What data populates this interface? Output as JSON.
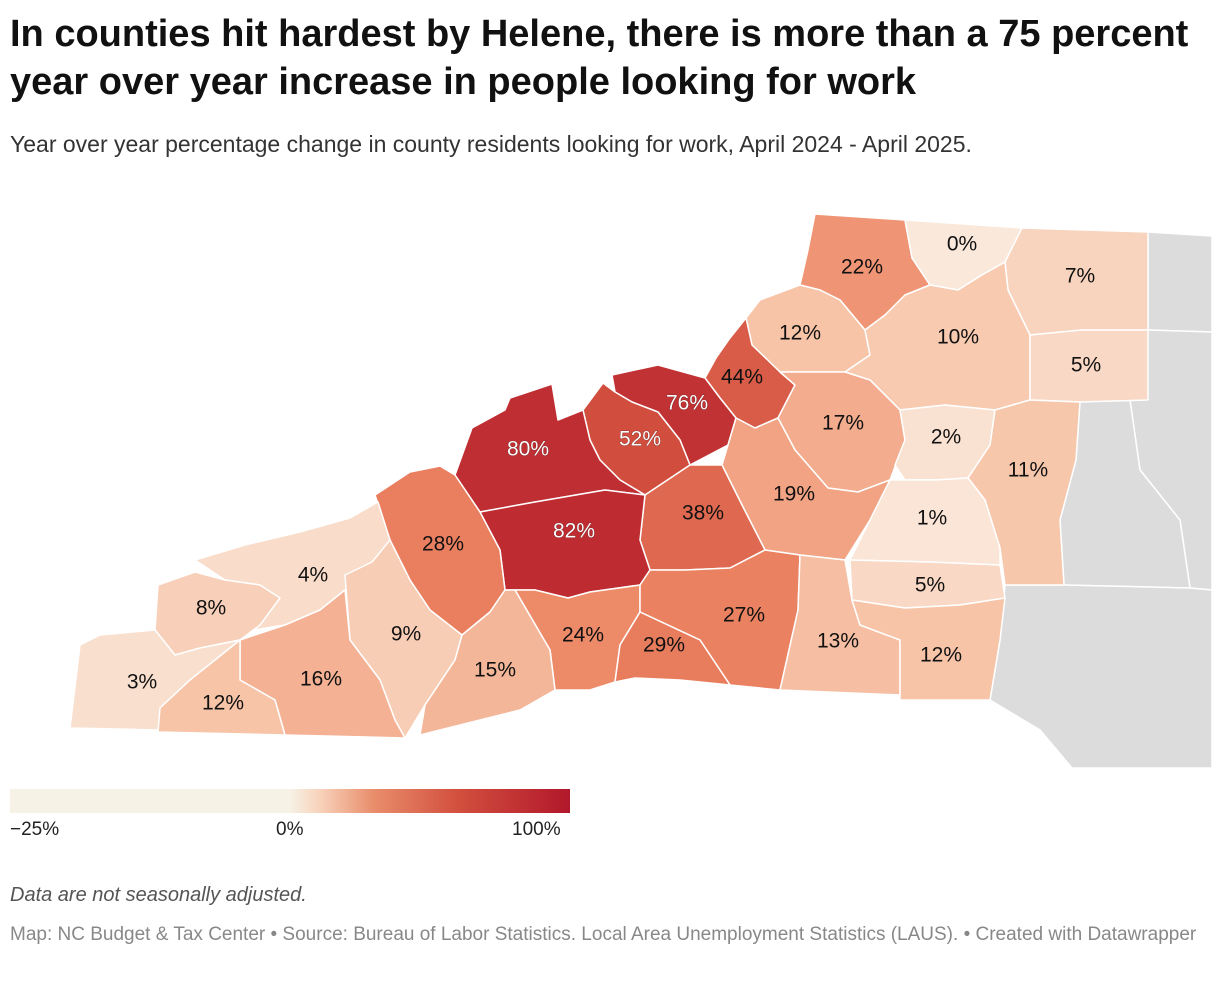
{
  "title": "In counties hit hardest by Helene, there is more than a 75 percent year over year increase in people looking for work",
  "subtitle": "Year over year percentage change in county residents looking for work, April 2024 - April 2025.",
  "legend": {
    "min_label": "−25%",
    "mid_label": "0%",
    "max_label": "100%",
    "colors": [
      "#f6f2e6",
      "#f8d4bd",
      "#e98d6b",
      "#d24f3e",
      "#b2182b"
    ]
  },
  "counties": [
    {
      "label": "22%",
      "value": 22
    },
    {
      "label": "0%",
      "value": 0
    },
    {
      "label": "7%",
      "value": 7
    },
    {
      "label": "12%",
      "value": 12
    },
    {
      "label": "10%",
      "value": 10
    },
    {
      "label": "5%",
      "value": 5
    },
    {
      "label": "44%",
      "value": 44
    },
    {
      "label": "76%",
      "value": 76
    },
    {
      "label": "52%",
      "value": 52
    },
    {
      "label": "80%",
      "value": 80
    },
    {
      "label": "17%",
      "value": 17
    },
    {
      "label": "2%",
      "value": 2
    },
    {
      "label": "11%",
      "value": 11
    },
    {
      "label": "19%",
      "value": 19
    },
    {
      "label": "38%",
      "value": 38
    },
    {
      "label": "82%",
      "value": 82
    },
    {
      "label": "28%",
      "value": 28
    },
    {
      "label": "1%",
      "value": 1
    },
    {
      "label": "4%",
      "value": 4
    },
    {
      "label": "5%",
      "value": 5
    },
    {
      "label": "8%",
      "value": 8
    },
    {
      "label": "9%",
      "value": 9
    },
    {
      "label": "24%",
      "value": 24
    },
    {
      "label": "27%",
      "value": 27
    },
    {
      "label": "29%",
      "value": 29
    },
    {
      "label": "13%",
      "value": 13
    },
    {
      "label": "12%",
      "value": 12
    },
    {
      "label": "3%",
      "value": 3
    },
    {
      "label": "16%",
      "value": 16
    },
    {
      "label": "15%",
      "value": 15
    },
    {
      "label": "12%",
      "value": 12
    }
  ],
  "note": "Data are not seasonally adjusted.",
  "source": "Map: NC Budget & Tax Center • Source: Bureau of Labor Statistics. Local Area Unemployment Statistics (LAUS). • Created with Datawrapper"
}
